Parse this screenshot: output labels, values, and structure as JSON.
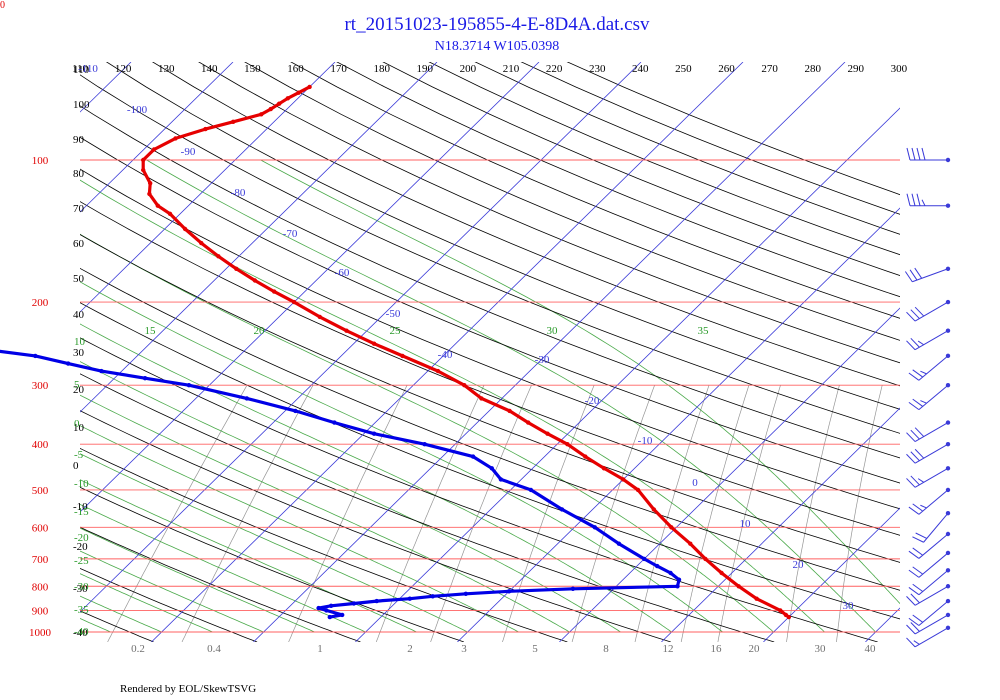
{
  "corner_label": "0",
  "footer": "Rendered by EOL/SkewTSVG",
  "colors": {
    "temperature": "#e60000",
    "dewpoint": "#0000e6",
    "isobar": "#ff6060",
    "isotherm": "#3a3ad8",
    "dry_adiabat": "#000000",
    "moist_adiabat": "#2a9a2a",
    "mixing_ratio": "#8a8a8a",
    "wind_barb": "#3a3ad8"
  },
  "chart_data": {
    "type": "skew-t",
    "title": "rt_20151023-195855-4-E-8D4A.dat.csv",
    "subtitle": "N18.3714 W105.0398",
    "pressure_levels": [
      100,
      200,
      300,
      400,
      500,
      600,
      700,
      800,
      900,
      1000
    ],
    "theta_labels": [
      "110",
      "120",
      "130",
      "140",
      "150",
      "160",
      "170",
      "180",
      "190",
      "200",
      "210",
      "220",
      "230",
      "240",
      "250",
      "260",
      "270",
      "280",
      "290",
      "300"
    ],
    "theta_left_labels": [
      "110",
      "100",
      "90",
      "80",
      "70",
      "60",
      "50",
      "40",
      "30",
      "20",
      "10",
      "0",
      "-10",
      "-20",
      "-30",
      "-40"
    ],
    "isotherm_labels": [
      "-110",
      "-100",
      "-90",
      "-80",
      "-70",
      "-60",
      "-50",
      "-40",
      "-30",
      "-20",
      "-10",
      "0",
      "10",
      "20",
      "30"
    ],
    "moist_adiabat_labels": [
      "15",
      "20",
      "25",
      "30",
      "35"
    ],
    "moist_left_labels": [
      "10",
      "5",
      "0",
      "-5",
      "-10",
      "-15",
      "-20",
      "-25",
      "-30",
      "-35",
      "-40"
    ],
    "mixing_ratio_labels": [
      "0.2",
      "0.4",
      "1",
      "2",
      "3",
      "5",
      "8",
      "12",
      "16",
      "20",
      "30",
      "40"
    ],
    "temperature": [
      [
        70,
        -70
      ],
      [
        72,
        -70.5
      ],
      [
        74,
        -71
      ],
      [
        76,
        -71.3
      ],
      [
        78,
        -71.6
      ],
      [
        80,
        -72
      ],
      [
        83,
        -74
      ],
      [
        86,
        -76
      ],
      [
        90,
        -78
      ],
      [
        95,
        -79
      ],
      [
        100,
        -79
      ],
      [
        105,
        -78
      ],
      [
        112,
        -76
      ],
      [
        118,
        -75
      ],
      [
        125,
        -73
      ],
      [
        130,
        -71
      ],
      [
        140,
        -68
      ],
      [
        150,
        -65
      ],
      [
        160,
        -62
      ],
      [
        170,
        -59
      ],
      [
        180,
        -56
      ],
      [
        190,
        -53
      ],
      [
        200,
        -50
      ],
      [
        215,
        -46
      ],
      [
        230,
        -42
      ],
      [
        245,
        -38
      ],
      [
        260,
        -34
      ],
      [
        280,
        -29
      ],
      [
        300,
        -25
      ],
      [
        320,
        -22
      ],
      [
        340,
        -18
      ],
      [
        360,
        -15
      ],
      [
        380,
        -12
      ],
      [
        400,
        -9
      ],
      [
        425,
        -6
      ],
      [
        450,
        -3
      ],
      [
        475,
        0
      ],
      [
        500,
        2.5
      ],
      [
        550,
        6
      ],
      [
        600,
        9.5
      ],
      [
        650,
        13
      ],
      [
        700,
        16
      ],
      [
        750,
        19
      ],
      [
        800,
        22
      ],
      [
        850,
        25
      ],
      [
        900,
        28.5
      ],
      [
        920,
        29.5
      ],
      [
        930,
        30
      ]
    ],
    "dewpoint": [
      [
        200,
        -88
      ],
      [
        210,
        -86
      ],
      [
        220,
        -84
      ],
      [
        230,
        -82
      ],
      [
        240,
        -80
      ],
      [
        250,
        -77
      ],
      [
        260,
        -70
      ],
      [
        270,
        -66
      ],
      [
        280,
        -62
      ],
      [
        290,
        -57
      ],
      [
        300,
        -52
      ],
      [
        320,
        -45
      ],
      [
        340,
        -39
      ],
      [
        360,
        -34
      ],
      [
        380,
        -29
      ],
      [
        400,
        -23
      ],
      [
        425,
        -17
      ],
      [
        450,
        -14
      ],
      [
        475,
        -12
      ],
      [
        500,
        -8
      ],
      [
        550,
        -3
      ],
      [
        600,
        2
      ],
      [
        650,
        6
      ],
      [
        700,
        10
      ],
      [
        725,
        12
      ],
      [
        750,
        14
      ],
      [
        775,
        15.5
      ],
      [
        800,
        16
      ],
      [
        810,
        6
      ],
      [
        820,
        0
      ],
      [
        830,
        -4
      ],
      [
        840,
        -7
      ],
      [
        850,
        -9
      ],
      [
        860,
        -12
      ],
      [
        870,
        -14
      ],
      [
        880,
        -16
      ],
      [
        890,
        -17
      ],
      [
        900,
        -16
      ],
      [
        920,
        -14
      ],
      [
        930,
        -15
      ]
    ],
    "wind_barbs": [
      {
        "pressure": 100,
        "direction": 270,
        "speed": 40
      },
      {
        "pressure": 125,
        "direction": 270,
        "speed": 35
      },
      {
        "pressure": 170,
        "direction": 250,
        "speed": 30
      },
      {
        "pressure": 200,
        "direction": 240,
        "speed": 30
      },
      {
        "pressure": 230,
        "direction": 240,
        "speed": 25
      },
      {
        "pressure": 260,
        "direction": 230,
        "speed": 25
      },
      {
        "pressure": 300,
        "direction": 230,
        "speed": 25
      },
      {
        "pressure": 360,
        "direction": 240,
        "speed": 30
      },
      {
        "pressure": 400,
        "direction": 240,
        "speed": 30
      },
      {
        "pressure": 450,
        "direction": 240,
        "speed": 25
      },
      {
        "pressure": 500,
        "direction": 230,
        "speed": 25
      },
      {
        "pressure": 560,
        "direction": 220,
        "speed": 20
      },
      {
        "pressure": 620,
        "direction": 230,
        "speed": 20
      },
      {
        "pressure": 680,
        "direction": 230,
        "speed": 20
      },
      {
        "pressure": 740,
        "direction": 230,
        "speed": 20
      },
      {
        "pressure": 800,
        "direction": 240,
        "speed": 20
      },
      {
        "pressure": 860,
        "direction": 230,
        "speed": 20
      },
      {
        "pressure": 920,
        "direction": 240,
        "speed": 20
      },
      {
        "pressure": 980,
        "direction": 240,
        "speed": 15
      }
    ]
  }
}
